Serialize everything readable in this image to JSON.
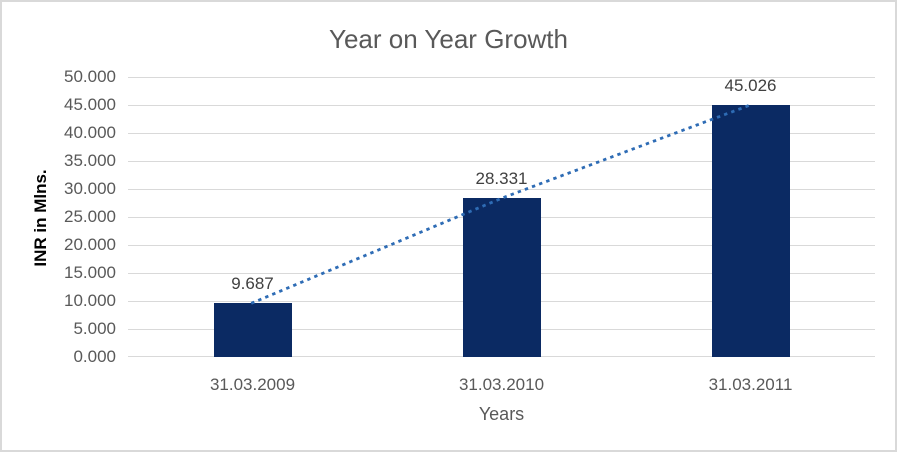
{
  "chart_data": {
    "type": "bar",
    "title": "Year on Year Growth",
    "xlabel": "Years",
    "ylabel": "INR in Mlns.",
    "categories": [
      "31.03.2009",
      "31.03.2010",
      "31.03.2011"
    ],
    "values": [
      9.687,
      28.331,
      45.026
    ],
    "data_labels": [
      "9.687",
      "28.331",
      "45.026"
    ],
    "ylim": [
      0,
      50
    ],
    "ytick_step": 5,
    "ytick_labels": [
      "0.000",
      "5.000",
      "10.000",
      "15.000",
      "20.000",
      "25.000",
      "30.000",
      "35.000",
      "40.000",
      "45.000",
      "50.000"
    ],
    "grid": true,
    "legend": "none",
    "trendline": {
      "style": "dotted",
      "values": [
        9.687,
        28.331,
        45.026
      ],
      "color": "#2e6cb5"
    },
    "colors": {
      "bar": "#0b2a63",
      "trendline": "#2e6cb5",
      "gridline": "#d9d9d9",
      "title_text": "#595959",
      "axis_text": "#595959",
      "data_label_text": "#404040",
      "ylabel_text": "#000000",
      "background": "#ffffff",
      "border": "#d9d9d9"
    }
  }
}
